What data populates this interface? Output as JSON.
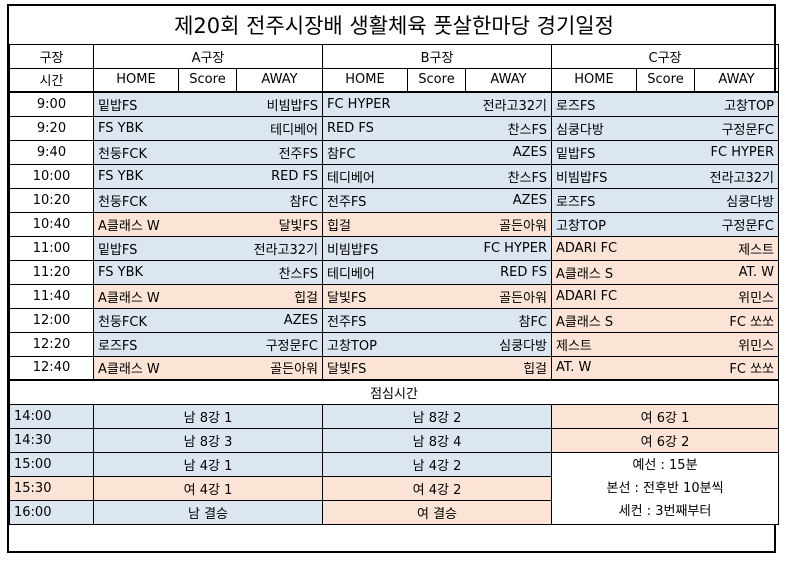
{
  "title": "제20회 전주시장배 생활체육 풋살한마당 경기일정",
  "header": {
    "venue_label": "구장",
    "time_label": "시간",
    "courts": [
      "A구장",
      "B구장",
      "C구장"
    ],
    "home": "HOME",
    "score": "Score",
    "away": "AWAY"
  },
  "morning": [
    {
      "time": "9:00",
      "a": [
        "밑밥FS",
        "비빔밥FS",
        "blue"
      ],
      "b": [
        "FC HYPER",
        "전라고32기",
        "blue"
      ],
      "c": [
        "로즈FS",
        "고창TOP",
        "blue"
      ]
    },
    {
      "time": "9:20",
      "a": [
        "FS YBK",
        "테디베어",
        "blue"
      ],
      "b": [
        "RED FS",
        "찬스FS",
        "blue"
      ],
      "c": [
        "심쿵다방",
        "구정문FC",
        "blue"
      ]
    },
    {
      "time": "9:40",
      "a": [
        "천둥FCK",
        "전주FS",
        "blue"
      ],
      "b": [
        "참FC",
        "AZES",
        "blue"
      ],
      "c": [
        "밑밥FS",
        "FC HYPER",
        "blue"
      ]
    },
    {
      "time": "10:00",
      "a": [
        "FS YBK",
        "RED FS",
        "blue"
      ],
      "b": [
        "테디베어",
        "찬스FS",
        "blue"
      ],
      "c": [
        "비빔밥FS",
        "전라고32기",
        "blue"
      ]
    },
    {
      "time": "10:20",
      "a": [
        "천둥FCK",
        "참FC",
        "blue"
      ],
      "b": [
        "전주FS",
        "AZES",
        "blue"
      ],
      "c": [
        "로즈FS",
        "심쿵다방",
        "blue"
      ]
    },
    {
      "time": "10:40",
      "a": [
        "A클래스 W",
        "달빛FS",
        "peach"
      ],
      "b": [
        "힙걸",
        "골든아워",
        "peach"
      ],
      "c": [
        "고창TOP",
        "구정문FC",
        "blue"
      ]
    },
    {
      "time": "11:00",
      "a": [
        "밑밥FS",
        "전라고32기",
        "blue"
      ],
      "b": [
        "비빔밥FS",
        "FC HYPER",
        "blue"
      ],
      "c": [
        "ADARI FC",
        "제스트",
        "peach"
      ]
    },
    {
      "time": "11:20",
      "a": [
        "FS YBK",
        "찬스FS",
        "blue"
      ],
      "b": [
        "테디베어",
        "RED FS",
        "blue"
      ],
      "c": [
        "A클래스 S",
        "AT. W",
        "peach"
      ]
    },
    {
      "time": "11:40",
      "a": [
        "A클래스 W",
        "힙걸",
        "peach"
      ],
      "b": [
        "달빛FS",
        "골든아워",
        "peach"
      ],
      "c": [
        "ADARI FC",
        "위민스",
        "peach"
      ]
    },
    {
      "time": "12:00",
      "a": [
        "천둥FCK",
        "AZES",
        "blue"
      ],
      "b": [
        "전주FS",
        "참FC",
        "blue"
      ],
      "c": [
        "A클래스 S",
        "FC 쏘쏘",
        "peach"
      ]
    },
    {
      "time": "12:20",
      "a": [
        "로즈FS",
        "구정문FC",
        "blue"
      ],
      "b": [
        "고창TOP",
        "심쿵다방",
        "blue"
      ],
      "c": [
        "제스트",
        "위민스",
        "peach"
      ]
    },
    {
      "time": "12:40",
      "a": [
        "A클래스 W",
        "골든아워",
        "peach"
      ],
      "b": [
        "달빛FS",
        "힙걸",
        "peach"
      ],
      "c": [
        "AT. W",
        "FC 쏘쏘",
        "peach"
      ]
    }
  ],
  "lunch": "점심시간",
  "afternoon": [
    {
      "time": "14:00",
      "time_color": "blue",
      "a": "남 8강 1",
      "a_color": "blue",
      "b": "남 8강 2",
      "b_color": "blue",
      "c": "여 6강 1",
      "c_color": "peach"
    },
    {
      "time": "14:30",
      "time_color": "blue",
      "a": "남 8강 3",
      "a_color": "blue",
      "b": "남 8강 4",
      "b_color": "blue",
      "c": "여 6강 2",
      "c_color": "peach"
    },
    {
      "time": "15:00",
      "time_color": "blue",
      "a": "남 4강 1",
      "a_color": "blue",
      "b": "남 4강 2",
      "b_color": "blue"
    },
    {
      "time": "15:30",
      "time_color": "peach",
      "a": "여 4강 1",
      "a_color": "peach",
      "b": "여 4강 2",
      "b_color": "peach"
    },
    {
      "time": "16:00",
      "time_color": "blue",
      "a": "남 결승",
      "a_color": "blue",
      "b": "여 결승",
      "b_color": "peach"
    }
  ],
  "notes": [
    "예선 : 15분",
    "본선 : 전후반 10분씩",
    "세컨 : 3번째부터"
  ],
  "colors": {
    "blue": "#dce6f1",
    "peach": "#fbe4d5"
  }
}
